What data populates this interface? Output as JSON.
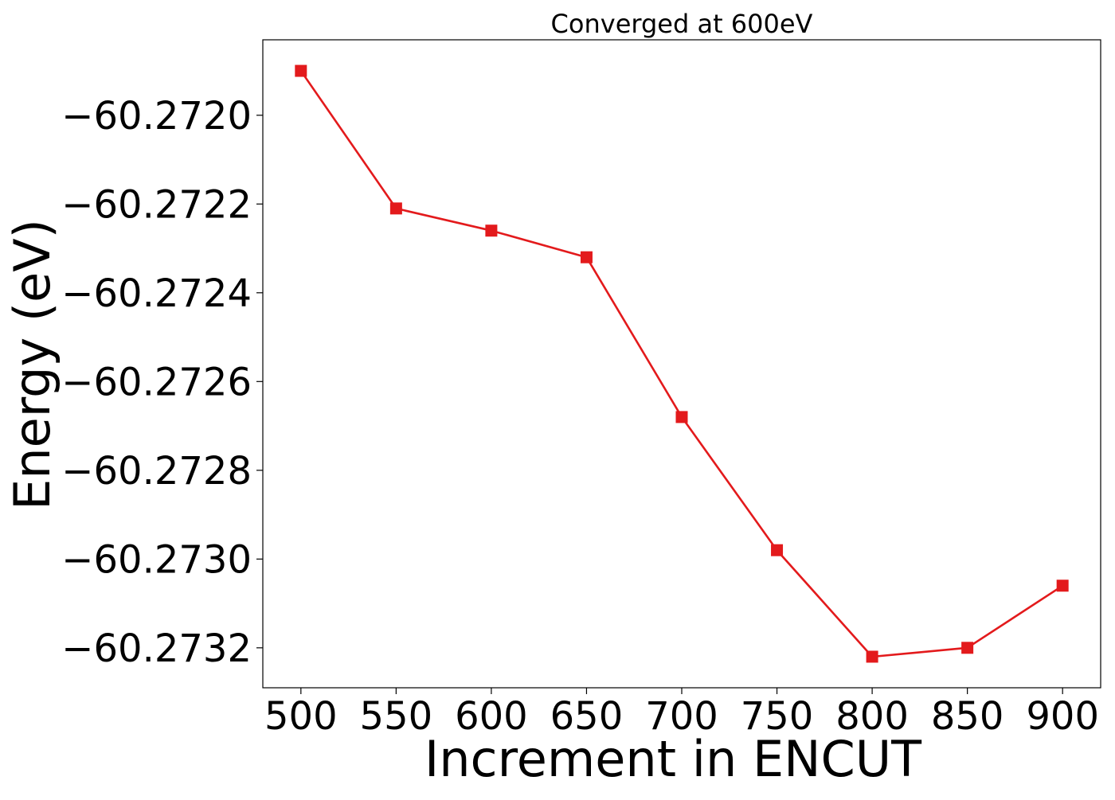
{
  "chart_data": {
    "type": "line",
    "title": "Converged at 600eV",
    "xlabel": "Increment in ENCUT",
    "ylabel": "Energy (eV)",
    "x": [
      500,
      550,
      600,
      650,
      700,
      750,
      800,
      850,
      900
    ],
    "series": [
      {
        "values": [
          -60.2719,
          -60.27221,
          -60.27226,
          -60.27232,
          -60.27268,
          -60.27298,
          -60.27322,
          -60.2732,
          -60.27306
        ],
        "color": "#e31a1c",
        "marker": "square"
      }
    ],
    "xticks": [
      500,
      550,
      600,
      650,
      700,
      750,
      800,
      850,
      900
    ],
    "xtick_labels": [
      "500",
      "550",
      "600",
      "650",
      "700",
      "750",
      "800",
      "850",
      "900"
    ],
    "yticks": [
      -60.272,
      -60.2722,
      -60.2724,
      -60.2726,
      -60.2728,
      -60.273,
      -60.2732
    ],
    "ytick_labels": [
      "−60.2720",
      "−60.2722",
      "−60.2724",
      "−60.2726",
      "−60.2728",
      "−60.2730",
      "−60.2732"
    ],
    "xlim": [
      480,
      920
    ],
    "ylim": [
      -60.27329,
      -60.27183
    ],
    "grid": false,
    "legend": "none"
  }
}
